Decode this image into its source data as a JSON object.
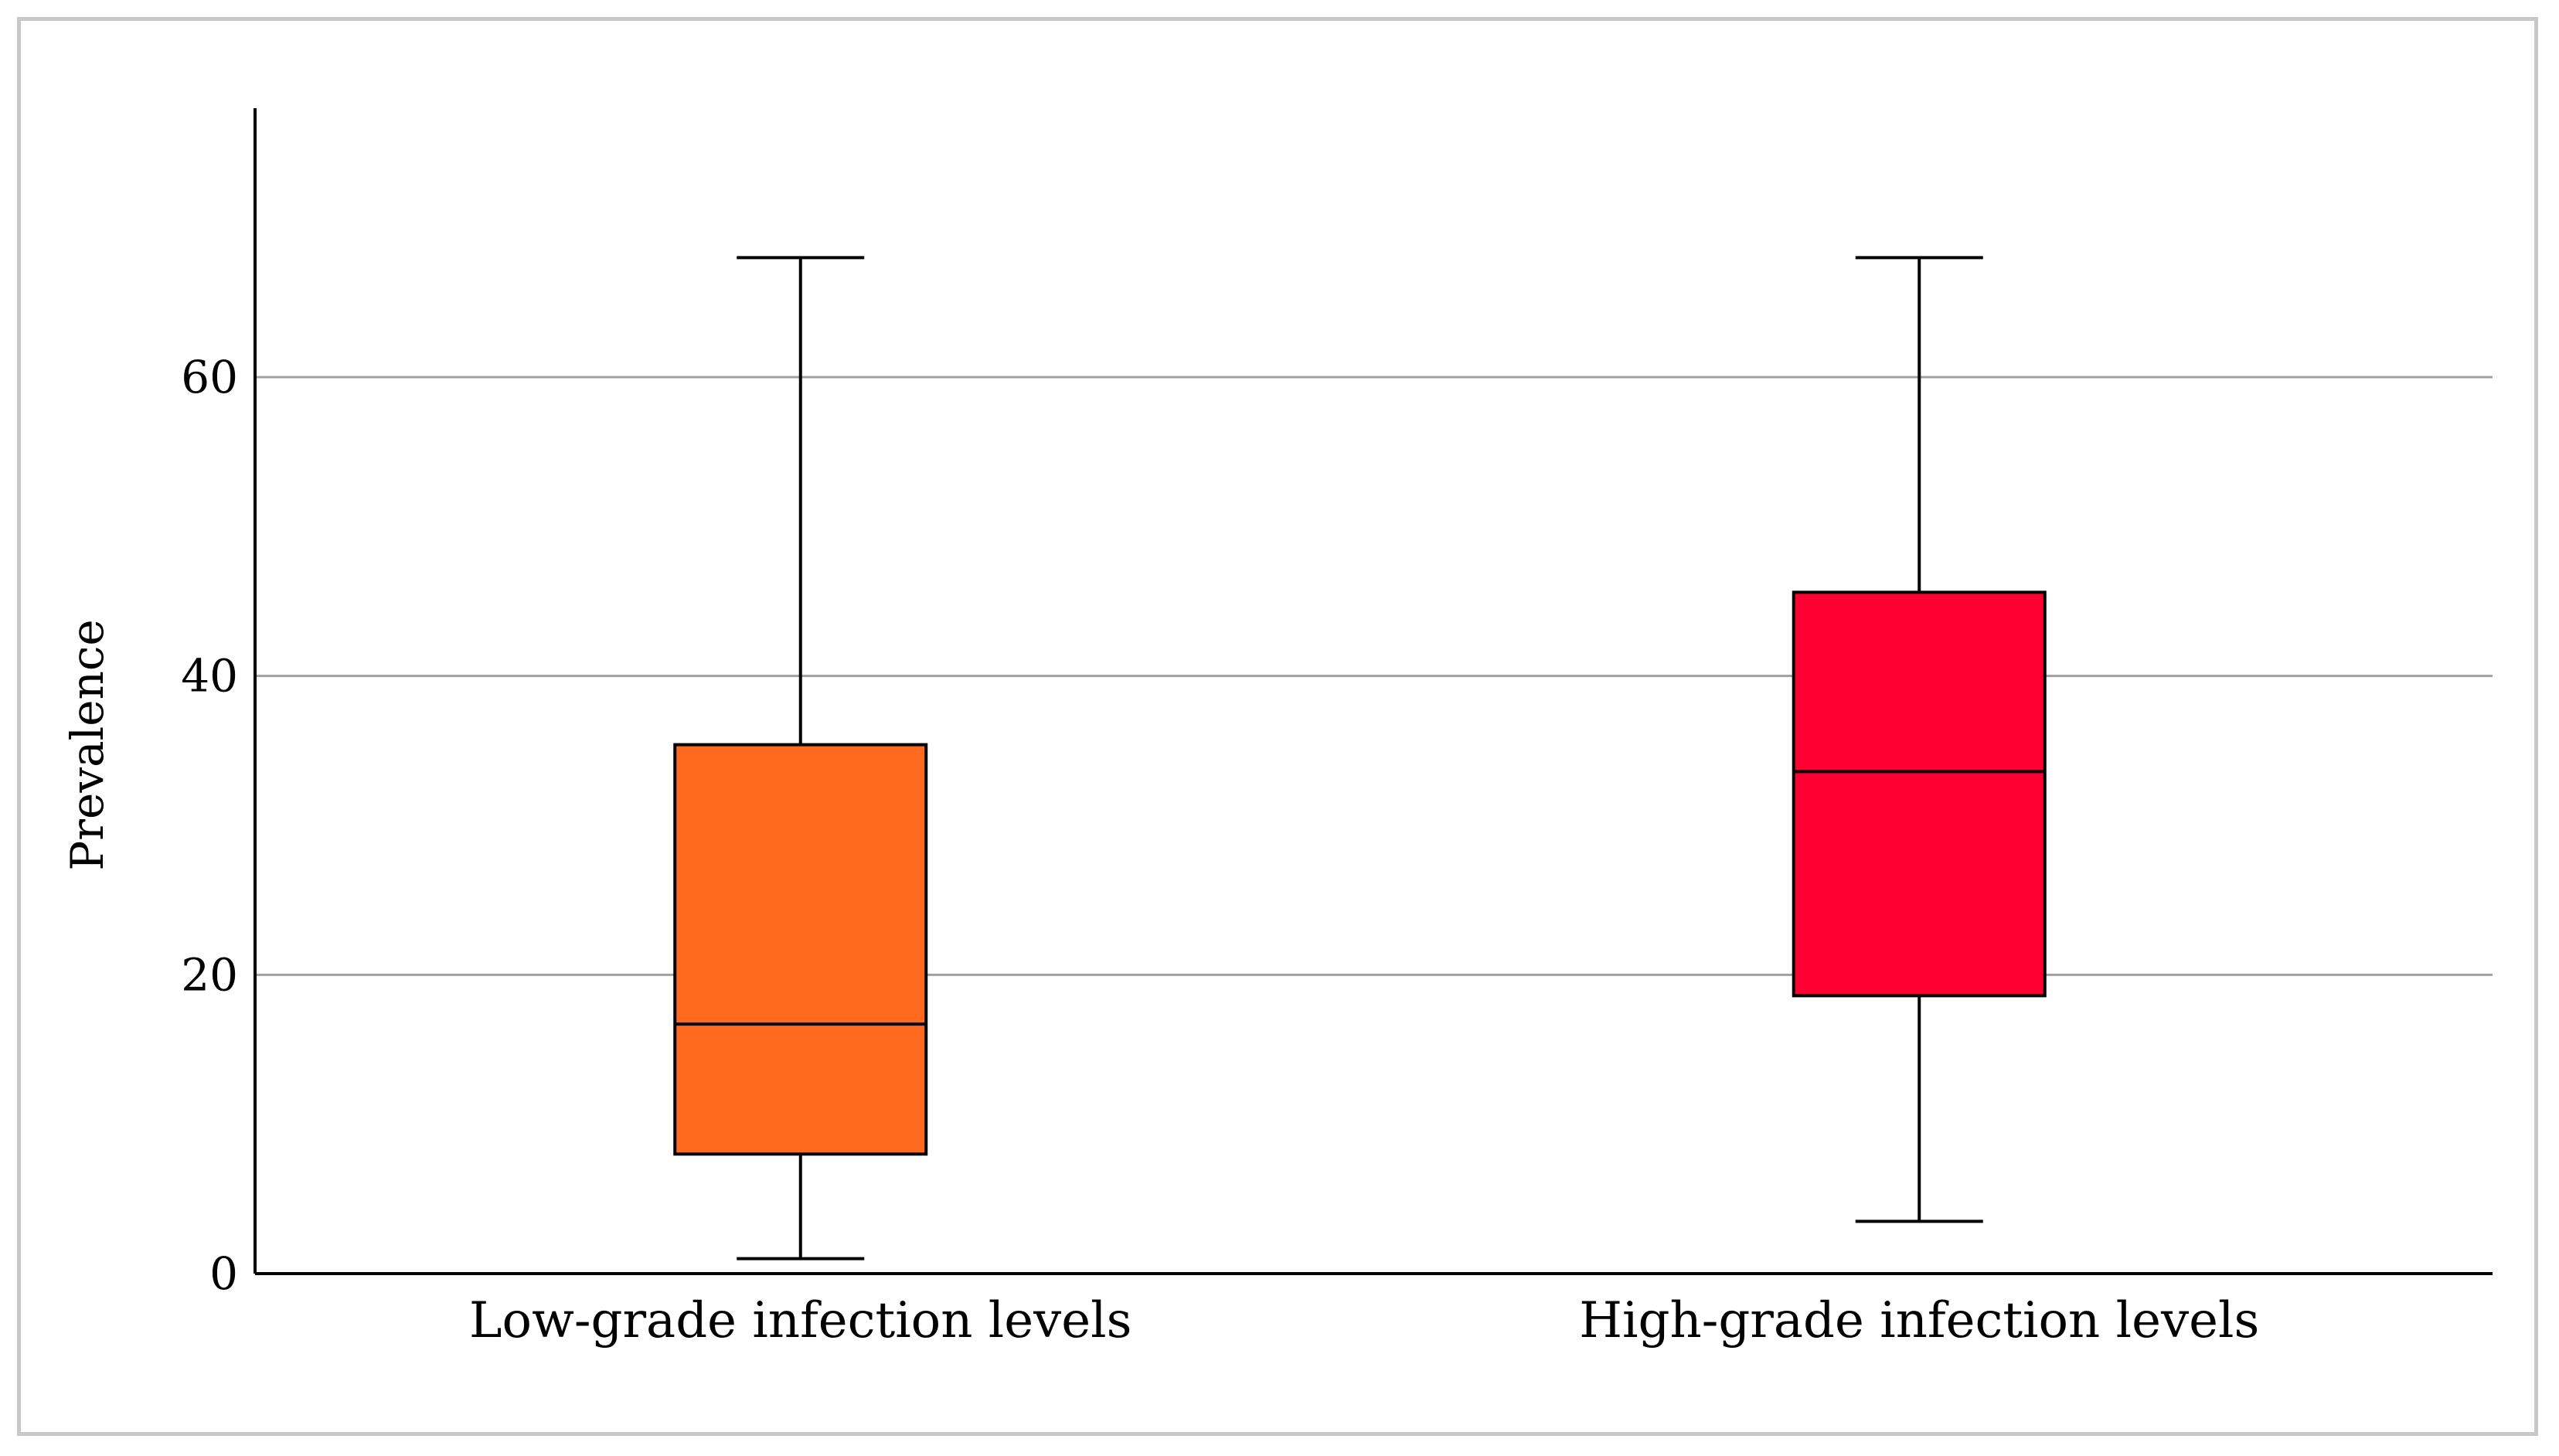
{
  "chart_data": {
    "type": "boxplot",
    "title": "",
    "xlabel": "",
    "ylabel": "Prevalence",
    "ylim": [
      0,
      78
    ],
    "y_ticks": [
      0,
      20,
      40,
      60
    ],
    "grid": true,
    "categories": [
      "Low-grade infection levels",
      "High-grade infection levels"
    ],
    "boxes": [
      {
        "category": "Low-grade infection levels",
        "min": 1,
        "q1": 8,
        "median": 16.7,
        "q3": 35.4,
        "max": 68,
        "color": "#FF6A1F"
      },
      {
        "category": "High-grade infection levels",
        "min": 3.5,
        "q1": 18.6,
        "median": 33.6,
        "q3": 45.6,
        "max": 68,
        "color": "#FF0033"
      }
    ]
  }
}
